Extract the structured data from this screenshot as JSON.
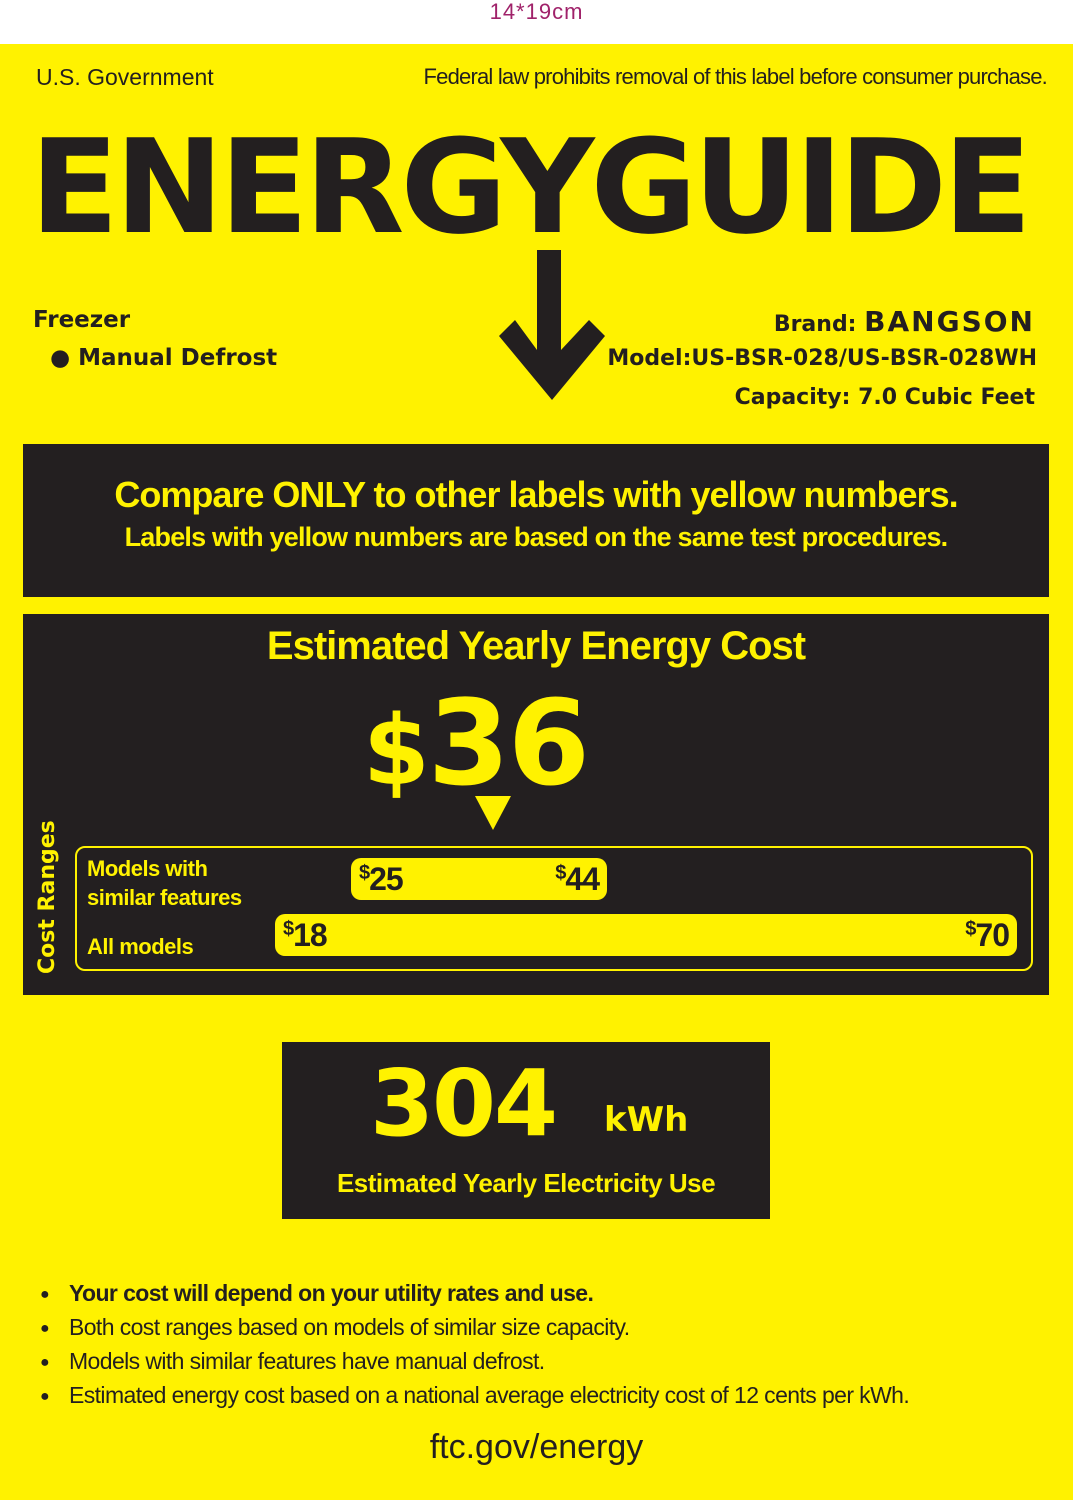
{
  "size_note": "14*19cm",
  "header": {
    "government": "U.S. Government",
    "law_notice": "Federal law prohibits removal of this label before consumer purchase.",
    "title": "ENERGYGUIDE"
  },
  "product": {
    "type": "Freezer",
    "feature": "Manual Defrost"
  },
  "specs": {
    "brand_label": "Brand:",
    "brand_logo": "BANGSON",
    "model": "Model:US-BSR-028/US-BSR-028WH",
    "capacity": "Capacity: 7.0 Cubic Feet"
  },
  "compare": {
    "line1": "Compare ONLY to other labels with yellow numbers.",
    "line2": "Labels with yellow numbers are based on the same test procedures."
  },
  "cost": {
    "heading": "Estimated Yearly Energy Cost",
    "currency": "$",
    "value": "36",
    "ranges_label": "Cost Ranges",
    "similar": {
      "label1": "Models with",
      "label2": "similar features",
      "min": "25",
      "max": "44"
    },
    "all": {
      "label": "All models",
      "min": "18",
      "max": "70"
    }
  },
  "electricity": {
    "value": "304",
    "unit": "kWh",
    "label": "Estimated Yearly Electricity Use"
  },
  "notes": [
    "Your cost will depend on your utility rates and use.",
    "Both cost ranges based on models of similar size capacity.",
    "Models with similar features have manual defrost.",
    "Estimated energy cost based on a national average electricity cost of 12 cents per kWh."
  ],
  "footer": {
    "link": "ftc.gov/energy"
  },
  "colors": {
    "yellow": "#fff200",
    "dark": "#231f20",
    "size_note": "#a0226a"
  }
}
